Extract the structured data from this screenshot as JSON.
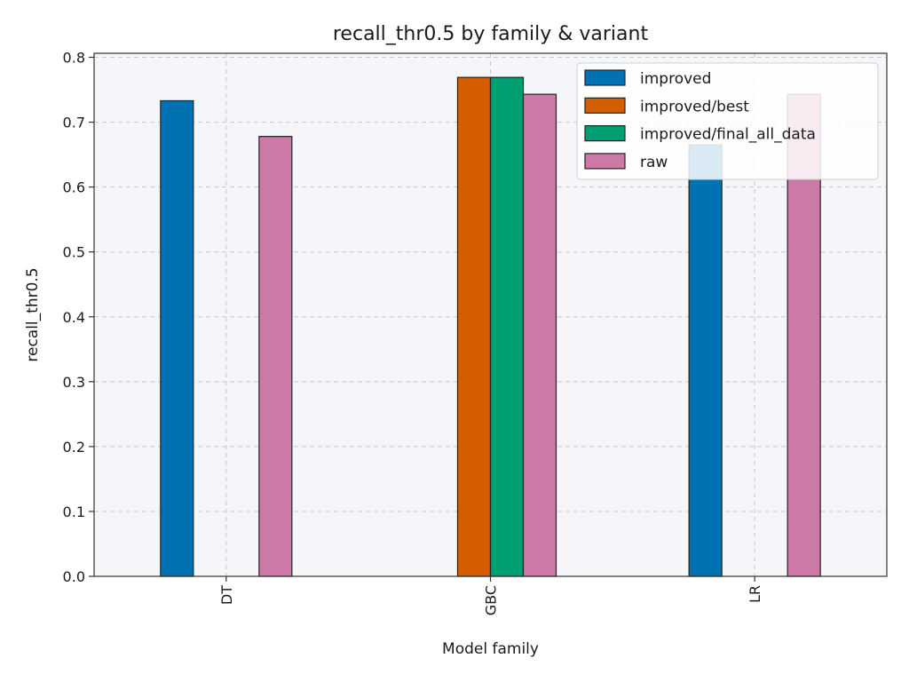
{
  "chart_data": {
    "type": "bar",
    "title": "recall_thr0.5 by family & variant",
    "xlabel": "Model family",
    "ylabel": "recall_thr0.5",
    "categories": [
      "DT",
      "GBC",
      "LR"
    ],
    "series": [
      {
        "name": "improved",
        "values": [
          0.733,
          null,
          0.665
        ],
        "color": "#0072b2"
      },
      {
        "name": "improved/best",
        "values": [
          null,
          0.769,
          null
        ],
        "color": "#d55e00"
      },
      {
        "name": "improved/final_all_data",
        "values": [
          null,
          0.769,
          null
        ],
        "color": "#009e73"
      },
      {
        "name": "raw",
        "values": [
          0.678,
          0.743,
          0.743
        ],
        "color": "#cc79a7"
      }
    ],
    "ylim": [
      0,
      0.8
    ],
    "yticks": [
      0.0,
      0.1,
      0.2,
      0.3,
      0.4,
      0.5,
      0.6,
      0.7,
      0.8
    ],
    "ytick_labels": [
      "0.0",
      "0.1",
      "0.2",
      "0.3",
      "0.4",
      "0.5",
      "0.6",
      "0.7",
      "0.8"
    ],
    "grid": true,
    "legend_position": "top-right",
    "plot_background": "#f5f6fa",
    "bar_edge_color": "#222222"
  }
}
